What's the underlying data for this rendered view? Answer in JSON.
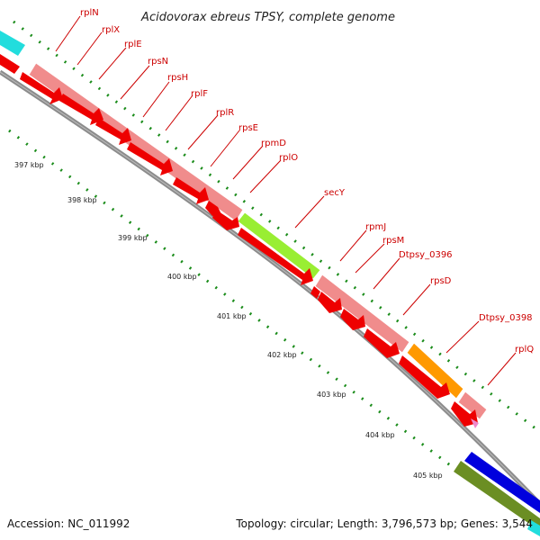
{
  "title": "Acidovorax ebreus TPSY, complete genome",
  "accession": "Accession: NC_011992",
  "summary": "Topology: circular; Length: 3,796,573 bp; Genes: 3,544",
  "genes": [
    "rplN",
    "rplX",
    "rplE",
    "rpsN",
    "rpsH",
    "rplF",
    "rplR",
    "rpsE",
    "rpmD",
    "rplO",
    "secY",
    "rpmJ",
    "rpsM",
    "Dtpsy_0396",
    "rpsD",
    "Dtpsy_0398",
    "rplQ"
  ],
  "ticks": [
    "397 kbp",
    "398 kbp",
    "399 kbp",
    "400 kbp",
    "401 kbp",
    "402 kbp",
    "403 kbp",
    "404 kbp",
    "405 kbp"
  ],
  "colors": {
    "cds": "#ee0000",
    "ribosomal": "#f08c8c",
    "secY": "#99ee33",
    "dtpsy_0398": "#ff9900",
    "cyan_feature": "#22dddd",
    "blue_feature": "#0000dd",
    "olive_feature": "#6b8e23",
    "backbone": "#8c8c8c",
    "tick_dots": "#1a8c1a"
  }
}
